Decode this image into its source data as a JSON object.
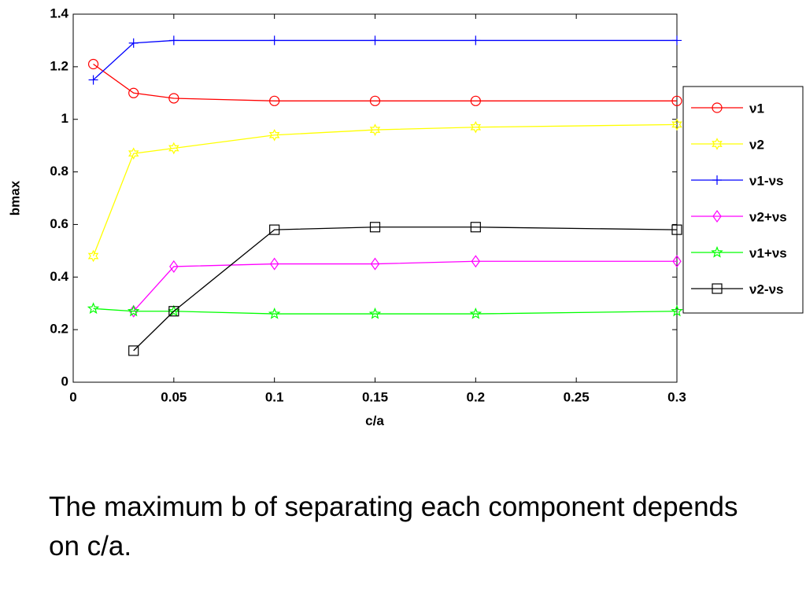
{
  "chart_data": {
    "type": "line",
    "xlabel": "c/a",
    "ylabel": "bmax",
    "xlim": [
      0,
      0.3
    ],
    "xticks": [
      0,
      0.05,
      0.1,
      0.15,
      0.2,
      0.25,
      0.3
    ],
    "ylim": [
      0,
      1.4
    ],
    "yticks": [
      0,
      0.2,
      0.4,
      0.6,
      0.8,
      1,
      1.2,
      1.4
    ],
    "legend": "right",
    "series": [
      {
        "name": "ν1",
        "color": "#ff0000",
        "marker": "circle",
        "x": [
          0.01,
          0.03,
          0.05,
          0.1,
          0.15,
          0.2,
          0.3
        ],
        "values": [
          1.21,
          1.1,
          1.08,
          1.07,
          1.07,
          1.07,
          1.07
        ]
      },
      {
        "name": "ν2",
        "color": "#ffff00",
        "marker": "hexagram",
        "x": [
          0.01,
          0.03,
          0.05,
          0.1,
          0.15,
          0.2,
          0.3
        ],
        "values": [
          0.48,
          0.87,
          0.89,
          0.94,
          0.96,
          0.97,
          0.98
        ]
      },
      {
        "name": "ν1-νs",
        "color": "#0000ff",
        "marker": "plus",
        "x": [
          0.01,
          0.03,
          0.05,
          0.1,
          0.15,
          0.2,
          0.3
        ],
        "values": [
          1.15,
          1.29,
          1.3,
          1.3,
          1.3,
          1.3,
          1.3
        ]
      },
      {
        "name": "ν2+νs",
        "color": "#ff00ff",
        "marker": "diamond",
        "x": [
          0.03,
          0.05,
          0.1,
          0.15,
          0.2,
          0.3
        ],
        "values": [
          0.27,
          0.44,
          0.45,
          0.45,
          0.46,
          0.46
        ]
      },
      {
        "name": "ν1+νs",
        "color": "#00ff00",
        "marker": "pentagram",
        "x": [
          0.01,
          0.03,
          0.05,
          0.1,
          0.15,
          0.2,
          0.3
        ],
        "values": [
          0.28,
          0.27,
          0.27,
          0.26,
          0.26,
          0.26,
          0.27
        ]
      },
      {
        "name": "ν2-νs",
        "color": "#000000",
        "marker": "square",
        "x": [
          0.03,
          0.05,
          0.1,
          0.15,
          0.2,
          0.3
        ],
        "values": [
          0.12,
          0.27,
          0.58,
          0.59,
          0.59,
          0.58
        ]
      }
    ]
  },
  "caption": "The maximum b of separating each component depends on c/a."
}
